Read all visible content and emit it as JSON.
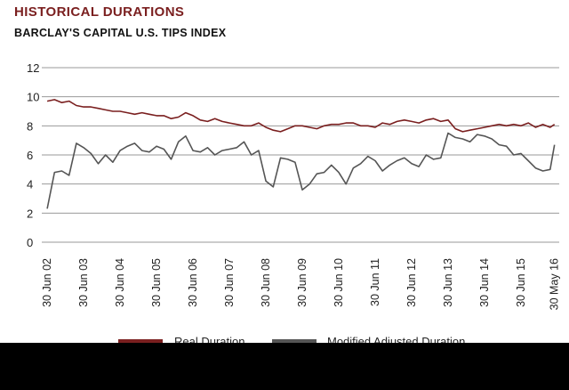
{
  "header": {
    "title": "HISTORICAL DURATIONS",
    "subtitle": "BARCLAY'S CAPITAL U.S. TIPS INDEX"
  },
  "colors": {
    "real": "#7a1f1f",
    "modified": "#555555",
    "grid": "#9a9a9a"
  },
  "chart_data": {
    "type": "line",
    "title": "HISTORICAL DURATIONS",
    "subtitle": "BARCLAY'S CAPITAL U.S. TIPS INDEX",
    "xlabel": "",
    "ylabel": "",
    "ylim": [
      0,
      12
    ],
    "yticks": [
      0,
      2,
      4,
      6,
      8,
      10,
      12
    ],
    "grid": true,
    "legend": "bottom",
    "xticks": [
      "30 Jun 02",
      "30 Jun 03",
      "30 Jun 04",
      "30 Jun 05",
      "30 Jun 06",
      "30 Jun 07",
      "30 Jun 08",
      "30 Jun 09",
      "30 Jun 10",
      "30 Jun 11",
      "30 Jun 12",
      "30 Jun 13",
      "30 Jun 14",
      "30 Jun 15",
      "30 May 16"
    ],
    "xtick_years": [
      2002.5,
      2003.5,
      2004.5,
      2005.5,
      2006.5,
      2007.5,
      2008.5,
      2009.5,
      2010.5,
      2011.5,
      2012.5,
      2013.5,
      2014.5,
      2015.5,
      2016.42
    ],
    "x": [
      2002.5,
      2002.7,
      2002.9,
      2003.1,
      2003.3,
      2003.5,
      2003.7,
      2003.9,
      2004.1,
      2004.3,
      2004.5,
      2004.7,
      2004.9,
      2005.1,
      2005.3,
      2005.5,
      2005.7,
      2005.9,
      2006.1,
      2006.3,
      2006.5,
      2006.7,
      2006.9,
      2007.1,
      2007.3,
      2007.5,
      2007.7,
      2007.9,
      2008.1,
      2008.3,
      2008.5,
      2008.7,
      2008.9,
      2009.1,
      2009.3,
      2009.5,
      2009.7,
      2009.9,
      2010.1,
      2010.3,
      2010.5,
      2010.7,
      2010.9,
      2011.1,
      2011.3,
      2011.5,
      2011.7,
      2011.9,
      2012.1,
      2012.3,
      2012.5,
      2012.7,
      2012.9,
      2013.1,
      2013.3,
      2013.5,
      2013.7,
      2013.9,
      2014.1,
      2014.3,
      2014.5,
      2014.7,
      2014.9,
      2015.1,
      2015.3,
      2015.5,
      2015.7,
      2015.9,
      2016.1,
      2016.3,
      2016.42
    ],
    "series": [
      {
        "name": "Real Duration",
        "values": [
          9.7,
          9.8,
          9.6,
          9.7,
          9.4,
          9.3,
          9.3,
          9.2,
          9.1,
          9.0,
          9.0,
          8.9,
          8.8,
          8.9,
          8.8,
          8.7,
          8.7,
          8.5,
          8.6,
          8.9,
          8.7,
          8.4,
          8.3,
          8.5,
          8.3,
          8.2,
          8.1,
          8.0,
          8.0,
          8.2,
          7.9,
          7.7,
          7.6,
          7.8,
          8.0,
          8.0,
          7.9,
          7.8,
          8.0,
          8.1,
          8.1,
          8.2,
          8.2,
          8.0,
          8.0,
          7.9,
          8.2,
          8.1,
          8.3,
          8.4,
          8.3,
          8.2,
          8.4,
          8.5,
          8.3,
          8.4,
          7.8,
          7.6,
          7.7,
          7.8,
          7.9,
          8.0,
          8.1,
          8.0,
          8.1,
          8.0,
          8.2,
          7.9,
          8.1,
          7.9,
          8.1
        ]
      },
      {
        "name": "Modified Adjusted Duration",
        "values": [
          2.3,
          4.8,
          4.9,
          4.6,
          6.8,
          6.5,
          6.1,
          5.4,
          6.0,
          5.5,
          6.3,
          6.6,
          6.8,
          6.3,
          6.2,
          6.6,
          6.4,
          5.7,
          6.9,
          7.3,
          6.3,
          6.2,
          6.5,
          6.0,
          6.3,
          6.4,
          6.5,
          6.9,
          6.0,
          6.3,
          4.2,
          3.8,
          5.8,
          5.7,
          5.5,
          3.6,
          4.0,
          4.7,
          4.8,
          5.3,
          4.8,
          4.0,
          5.1,
          5.4,
          5.9,
          5.6,
          4.9,
          5.3,
          5.6,
          5.8,
          5.4,
          5.2,
          6.0,
          5.7,
          5.8,
          7.5,
          7.2,
          7.1,
          6.9,
          7.4,
          7.3,
          7.1,
          6.7,
          6.6,
          6.0,
          6.1,
          5.6,
          5.1,
          4.9,
          5.0,
          6.7
        ]
      }
    ]
  }
}
